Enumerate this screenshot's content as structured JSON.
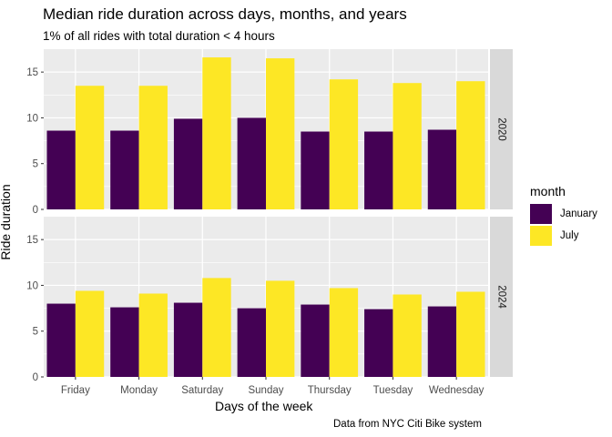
{
  "chart_data": {
    "type": "bar",
    "title": "Median ride duration across days, months, and years",
    "subtitle": "1% of all rides with total duration < 4 hours",
    "caption": "Data from NYC Citi Bike system",
    "xlabel": "Days of the week",
    "ylabel": "Ride duration",
    "ylim": [
      0,
      17.5
    ],
    "yticks": [
      0,
      5,
      10,
      15
    ],
    "categories": [
      "Friday",
      "Monday",
      "Saturday",
      "Sunday",
      "Thursday",
      "Tuesday",
      "Wednesday"
    ],
    "legend": {
      "title": "month",
      "position": "right",
      "entries": [
        {
          "name": "January",
          "color": "#440154"
        },
        {
          "name": "July",
          "color": "#FDE725"
        }
      ]
    },
    "facets": [
      {
        "label": "2020",
        "series": [
          {
            "name": "January",
            "values": [
              8.6,
              8.6,
              9.9,
              10.0,
              8.5,
              8.5,
              8.7
            ]
          },
          {
            "name": "July",
            "values": [
              13.5,
              13.5,
              16.6,
              16.5,
              14.2,
              13.8,
              14.0
            ]
          }
        ]
      },
      {
        "label": "2024",
        "series": [
          {
            "name": "January",
            "values": [
              8.0,
              7.6,
              8.1,
              7.5,
              7.9,
              7.4,
              7.7
            ]
          },
          {
            "name": "July",
            "values": [
              9.4,
              9.1,
              10.8,
              10.5,
              9.7,
              9.0,
              9.3
            ]
          }
        ]
      }
    ]
  }
}
